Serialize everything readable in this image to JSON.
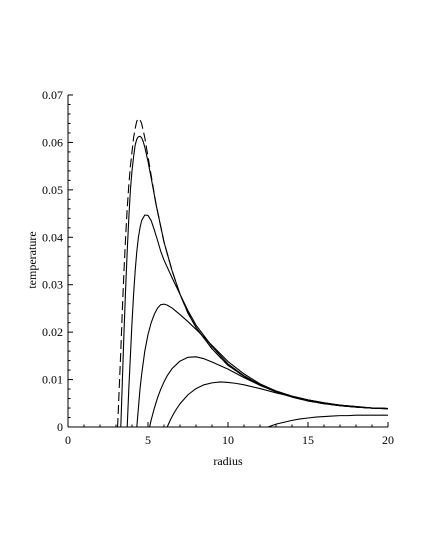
{
  "chart_data": {
    "type": "line",
    "title": "",
    "xlabel": "radius",
    "ylabel": "temperature",
    "xlim": [
      0,
      20
    ],
    "ylim": [
      0,
      0.07
    ],
    "xticks": [
      0,
      5,
      10,
      15,
      20
    ],
    "xtick_labels": [
      "0",
      "5",
      "10",
      "15",
      "20"
    ],
    "yticks": [
      0,
      0.01,
      0.02,
      0.03,
      0.04,
      0.05,
      0.06,
      0.07
    ],
    "ytick_labels": [
      "0",
      "0.01",
      "0.02",
      "0.03",
      "0.04",
      "0.05",
      "0.06",
      "0.07"
    ],
    "grid": false,
    "legend": "none",
    "series": [
      {
        "style": "dashed",
        "color": "#000000",
        "x": [
          3.1,
          3.2,
          3.3,
          3.4,
          3.5,
          3.6,
          3.7,
          3.8,
          3.9,
          4.0,
          4.1,
          4.2,
          4.3,
          4.4,
          4.5,
          4.6,
          4.7,
          4.8,
          5.0,
          5.2,
          5.5,
          6.0,
          6.5,
          7.0,
          7.5,
          8.0,
          9.0,
          10.0,
          11.0,
          12.0,
          13.0,
          14.0,
          15.0,
          16.0,
          17.0,
          18.0,
          19.0,
          20.0
        ],
        "y": [
          0.0,
          0.008,
          0.016,
          0.025,
          0.033,
          0.04,
          0.046,
          0.051,
          0.055,
          0.058,
          0.061,
          0.063,
          0.0645,
          0.065,
          0.0648,
          0.064,
          0.0625,
          0.061,
          0.057,
          0.053,
          0.047,
          0.039,
          0.033,
          0.028,
          0.024,
          0.021,
          0.0165,
          0.013,
          0.0107,
          0.0088,
          0.0074,
          0.0063,
          0.0055,
          0.0049,
          0.0045,
          0.0042,
          0.004,
          0.0039
        ]
      },
      {
        "style": "solid",
        "color": "#000000",
        "x": [
          3.3,
          3.4,
          3.5,
          3.6,
          3.7,
          3.8,
          3.9,
          4.0,
          4.1,
          4.2,
          4.3,
          4.4,
          4.5,
          4.6,
          4.7,
          4.8,
          5.0,
          5.2,
          5.5,
          6.0,
          6.5,
          7.0,
          7.5,
          8.0,
          9.0,
          10.0,
          11.0,
          12.0,
          13.0,
          14.0,
          15.0,
          16.0,
          17.0,
          18.0,
          19.0,
          20.0
        ],
        "y": [
          0.0,
          0.01,
          0.02,
          0.029,
          0.037,
          0.044,
          0.05,
          0.054,
          0.057,
          0.0595,
          0.0607,
          0.0612,
          0.0613,
          0.061,
          0.0602,
          0.059,
          0.056,
          0.0525,
          0.047,
          0.039,
          0.033,
          0.028,
          0.024,
          0.021,
          0.0165,
          0.013,
          0.0107,
          0.0088,
          0.0074,
          0.0063,
          0.0055,
          0.0049,
          0.0045,
          0.0042,
          0.004,
          0.0039
        ]
      },
      {
        "style": "solid",
        "color": "#000000",
        "x": [
          3.7,
          3.8,
          3.9,
          4.0,
          4.1,
          4.2,
          4.3,
          4.4,
          4.5,
          4.6,
          4.8,
          5.0,
          5.2,
          5.4,
          5.6,
          5.8,
          6.0,
          6.5,
          7.0,
          7.5,
          8.0,
          9.0,
          10.0,
          11.0,
          12.0,
          13.0,
          14.0,
          15.0,
          16.0,
          17.0,
          18.0,
          19.0,
          20.0
        ],
        "y": [
          0.0,
          0.008,
          0.015,
          0.022,
          0.028,
          0.033,
          0.037,
          0.04,
          0.042,
          0.0435,
          0.0447,
          0.0446,
          0.0435,
          0.0415,
          0.0393,
          0.037,
          0.0352,
          0.0315,
          0.028,
          0.0245,
          0.0215,
          0.017,
          0.0133,
          0.0108,
          0.0089,
          0.0075,
          0.0064,
          0.0056,
          0.005,
          0.0045,
          0.0042,
          0.004,
          0.0039
        ]
      },
      {
        "style": "solid",
        "color": "#000000",
        "x": [
          4.3,
          4.4,
          4.5,
          4.6,
          4.8,
          5.0,
          5.2,
          5.4,
          5.6,
          5.8,
          6.0,
          6.2,
          6.5,
          7.0,
          7.5,
          8.0,
          9.0,
          10.0,
          11.0,
          12.0,
          13.0,
          14.0,
          15.0,
          16.0,
          17.0,
          18.0,
          19.0,
          20.0
        ],
        "y": [
          0.0,
          0.004,
          0.008,
          0.011,
          0.016,
          0.0195,
          0.022,
          0.0238,
          0.0251,
          0.0258,
          0.0259,
          0.0257,
          0.0251,
          0.0237,
          0.0222,
          0.0206,
          0.0172,
          0.0138,
          0.0112,
          0.0091,
          0.0076,
          0.0065,
          0.0057,
          0.005,
          0.0046,
          0.0042,
          0.004,
          0.0039
        ]
      },
      {
        "style": "solid",
        "color": "#000000",
        "x": [
          5.1,
          5.2,
          5.4,
          5.6,
          5.8,
          6.0,
          6.2,
          6.5,
          7.0,
          7.5,
          8.0,
          8.5,
          9.0,
          10.0,
          11.0,
          12.0,
          13.0,
          14.0,
          15.0,
          16.0,
          17.0,
          18.0,
          19.0,
          20.0
        ],
        "y": [
          0.0,
          0.0015,
          0.004,
          0.0062,
          0.008,
          0.0095,
          0.0108,
          0.0123,
          0.0139,
          0.0147,
          0.0148,
          0.0144,
          0.0137,
          0.0122,
          0.0104,
          0.0088,
          0.0075,
          0.0065,
          0.0057,
          0.0051,
          0.0046,
          0.0043,
          0.004,
          0.0039
        ]
      },
      {
        "style": "solid",
        "color": "#000000",
        "x": [
          6.2,
          6.4,
          6.6,
          6.8,
          7.0,
          7.5,
          8.0,
          8.5,
          9.0,
          9.5,
          10.0,
          10.5,
          11.0,
          12.0,
          13.0,
          14.0,
          15.0,
          16.0,
          17.0,
          18.0,
          19.0,
          20.0
        ],
        "y": [
          0.0,
          0.0015,
          0.0028,
          0.0039,
          0.0049,
          0.0068,
          0.0081,
          0.0089,
          0.0093,
          0.0095,
          0.0094,
          0.0092,
          0.0089,
          0.0081,
          0.0072,
          0.0064,
          0.0057,
          0.0051,
          0.0046,
          0.0043,
          0.004,
          0.0038
        ]
      },
      {
        "style": "solid",
        "color": "#000000",
        "x": [
          12.5,
          13.0,
          13.5,
          14.0,
          14.5,
          15.0,
          15.5,
          16.0,
          16.5,
          17.0,
          17.5,
          18.0,
          18.5,
          19.0,
          19.5,
          20.0
        ],
        "y": [
          0.0,
          0.0006,
          0.001,
          0.0014,
          0.0017,
          0.0019,
          0.0021,
          0.0022,
          0.0023,
          0.0024,
          0.0024,
          0.0025,
          0.0025,
          0.0025,
          0.0025,
          0.0025
        ]
      }
    ]
  }
}
